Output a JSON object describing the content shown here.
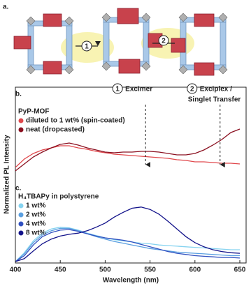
{
  "figure": {
    "panel_a_label": "a.",
    "step_labels": [
      "1",
      "2"
    ],
    "ylabel": "Normalized PL Intensity"
  },
  "chart_data": [
    {
      "type": "line",
      "label": "b.",
      "legend_title": "PyP-MOF",
      "xlim": [
        400,
        657
      ],
      "ylim": [
        0,
        1
      ],
      "x": [
        400,
        410,
        420,
        430,
        440,
        450,
        460,
        470,
        480,
        490,
        500,
        510,
        520,
        530,
        540,
        550,
        560,
        570,
        580,
        590,
        600,
        610,
        620,
        630,
        640,
        650
      ],
      "series": [
        {
          "name": "diluted to 1 wt% (spin-coated)",
          "color": "#e0484c",
          "values": [
            0.1,
            0.22,
            0.3,
            0.35,
            0.38,
            0.41,
            0.41,
            0.38,
            0.36,
            0.33,
            0.31,
            0.29,
            0.28,
            0.27,
            0.26,
            0.25,
            0.24,
            0.23,
            0.21,
            0.2,
            0.18,
            0.18,
            0.17,
            0.16,
            0.16,
            0.15
          ]
        },
        {
          "name": "neat (dropcasted)",
          "color": "#8b1020",
          "values": [
            0.05,
            0.15,
            0.25,
            0.32,
            0.38,
            0.43,
            0.45,
            0.42,
            0.38,
            0.35,
            0.32,
            0.31,
            0.32,
            0.32,
            0.33,
            0.33,
            0.32,
            0.3,
            0.28,
            0.28,
            0.3,
            0.35,
            0.42,
            0.5,
            0.6,
            0.65
          ]
        }
      ],
      "annotations": [
        {
          "number": "1",
          "text": "Excimer",
          "x": 545
        },
        {
          "number": "2",
          "text": "Exciplex /",
          "text2": "Singlet Transfer",
          "x": 628
        }
      ]
    },
    {
      "type": "line",
      "label": "c.",
      "legend_title": "H₄TBAPy in polystyrene",
      "xlim": [
        400,
        657
      ],
      "ylim": [
        0,
        1
      ],
      "xticks": [
        400,
        450,
        500,
        550,
        600,
        650
      ],
      "xlabel": "Wavelength (nm)",
      "x": [
        400,
        410,
        420,
        430,
        440,
        450,
        460,
        470,
        480,
        490,
        500,
        510,
        520,
        530,
        540,
        550,
        560,
        570,
        580,
        590,
        600,
        610,
        620,
        630,
        640,
        650
      ],
      "series": [
        {
          "name": "1 wt%",
          "color": "#86d3f0",
          "values": [
            0,
            0.15,
            0.35,
            0.48,
            0.55,
            0.58,
            0.57,
            0.53,
            0.48,
            0.44,
            0.4,
            0.37,
            0.35,
            0.33,
            0.31,
            0.3,
            0.28,
            0.27,
            0.26,
            0.25,
            0.24,
            0.23,
            0.22,
            0.21,
            0.2,
            0.2
          ]
        },
        {
          "name": "2 wt%",
          "color": "#5a9fe0",
          "values": [
            0,
            0.13,
            0.32,
            0.45,
            0.52,
            0.56,
            0.56,
            0.52,
            0.47,
            0.42,
            0.38,
            0.34,
            0.31,
            0.28,
            0.25,
            0.22,
            0.2,
            0.18,
            0.16,
            0.15,
            0.14,
            0.13,
            0.12,
            0.11,
            0.1,
            0.1
          ]
        },
        {
          "name": "4 wt%",
          "color": "#3050c0",
          "values": [
            0,
            0.1,
            0.28,
            0.42,
            0.49,
            0.53,
            0.54,
            0.51,
            0.47,
            0.43,
            0.4,
            0.38,
            0.36,
            0.33,
            0.29,
            0.25,
            0.21,
            0.17,
            0.14,
            0.12,
            0.1,
            0.09,
            0.08,
            0.07,
            0.07,
            0.06
          ]
        },
        {
          "name": "8 wt%",
          "color": "#12128a",
          "values": [
            0,
            0.05,
            0.18,
            0.3,
            0.38,
            0.43,
            0.46,
            0.48,
            0.52,
            0.58,
            0.65,
            0.75,
            0.83,
            0.9,
            0.92,
            0.88,
            0.8,
            0.68,
            0.55,
            0.42,
            0.32,
            0.25,
            0.2,
            0.17,
            0.15,
            0.14
          ]
        }
      ]
    }
  ]
}
